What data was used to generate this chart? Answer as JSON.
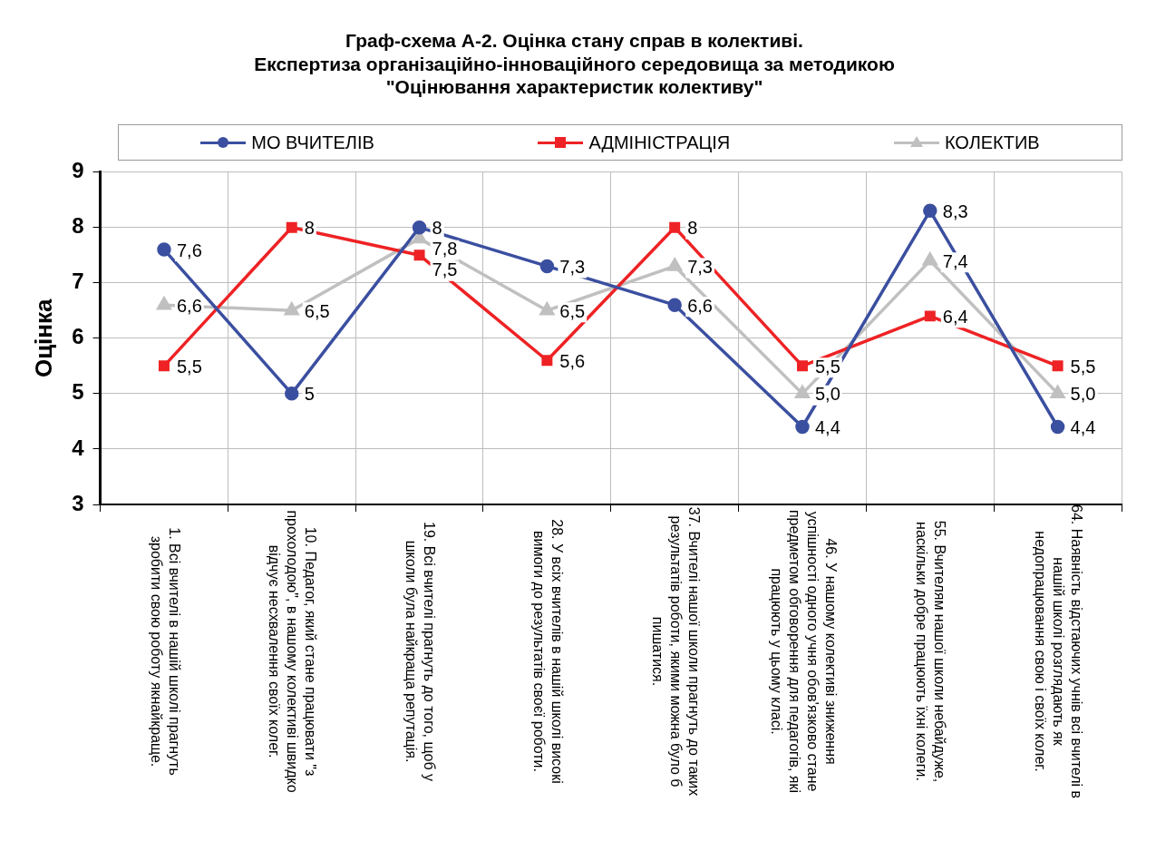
{
  "chart_data": {
    "type": "line",
    "title": "Граф-схема А-2. Оцінка стану справ в колективі.\nЕкспертиза організаційно-інноваційного середовища за методикою\n\"Оцінювання характеристик колективу\"",
    "ylabel": "Оцінка",
    "categories": [
      "1. Всі вчителі в нашій школі прагнуть зробити свою роботу якнайкраще.",
      "10. Педагог, який стане працювати \"з прохолодою\", в нашому колективі швидко відчує несхвалення своїх колег.",
      "19. Всі вчителі прагнуть до того, щоб у школи була найкраща репутація.",
      "28. У всіх вчителів в нашій школі високі вимоги до результатів своєї роботи.",
      "37. Вчителі нашої школи прагнуть до таких результатів роботи, якими можна було б пишатися.",
      "46. У нашому колективі зниження успішності одного учня обов'язково стане предметом обговорення для педагогів, які працюють у цьому класі.",
      "55. Вчителям нашої школи небайдуже, наскільки добре працюють їхні колеги.",
      "64. Наявність відстаючих учнів всі вчителі в нашій школі розглядають як недопрацювання свою і своїх колег."
    ],
    "series": [
      {
        "name": "МО ВЧИТЕЛІВ",
        "color": "#3b4fa0",
        "marker": "circle",
        "values": [
          7.6,
          5,
          8,
          7.3,
          6.6,
          4.4,
          8.3,
          4.4
        ],
        "value_labels": [
          "7,6",
          "5",
          "8",
          "7,3",
          "6,6",
          "4,4",
          "8,3",
          "4,4"
        ]
      },
      {
        "name": "АДМІНІСТРАЦІЯ",
        "color": "#ee2224",
        "marker": "square",
        "values": [
          5.5,
          8,
          7.5,
          5.6,
          8,
          5.5,
          6.4,
          5.5
        ],
        "value_labels": [
          "5,5",
          "8",
          "7,5",
          "5,6",
          "8",
          "5,5",
          "6,4",
          "5,5"
        ]
      },
      {
        "name": "КОЛЕКТИВ",
        "color": "#c0c0c0",
        "marker": "triangle",
        "values": [
          6.6,
          6.5,
          7.8,
          6.5,
          7.3,
          5.0,
          7.4,
          5.0
        ],
        "value_labels": [
          "6,6",
          "6,5",
          "7,8",
          "6,5",
          "7,3",
          "5,0",
          "7,4",
          "5,0"
        ]
      }
    ],
    "ylim": [
      3,
      9
    ],
    "yticks": [
      3,
      4,
      5,
      6,
      7,
      8,
      9
    ],
    "grid": true,
    "legend": "top"
  }
}
